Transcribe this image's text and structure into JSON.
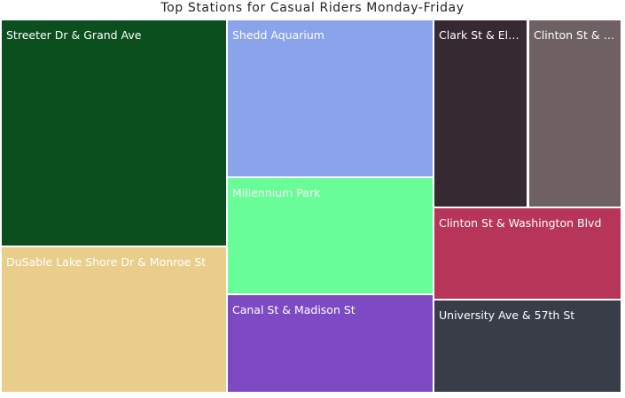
{
  "chart_data": {
    "type": "treemap",
    "title": "Top Stations for Casual Riders Monday-Friday",
    "tiles": [
      {
        "label": "Streeter Dr & Grand Ave",
        "color": "#0c4f1f"
      },
      {
        "label": "DuSable Lake Shore Dr & Monroe St",
        "color": "#e9cd8b"
      },
      {
        "label": "Shedd Aquarium",
        "color": "#8ba3ea"
      },
      {
        "label": "Millennium Park",
        "color": "#68fd96"
      },
      {
        "label": "Canal St & Madison St",
        "color": "#7d4ac3"
      },
      {
        "label": "Clark St & Elm St",
        "color": "#372932"
      },
      {
        "label": "Clinton St & Madison St",
        "color": "#6f6163"
      },
      {
        "label": "Clinton St & Washington Blvd",
        "color": "#b63559"
      },
      {
        "label": "University Ave & 57th St",
        "color": "#383d48"
      }
    ]
  }
}
